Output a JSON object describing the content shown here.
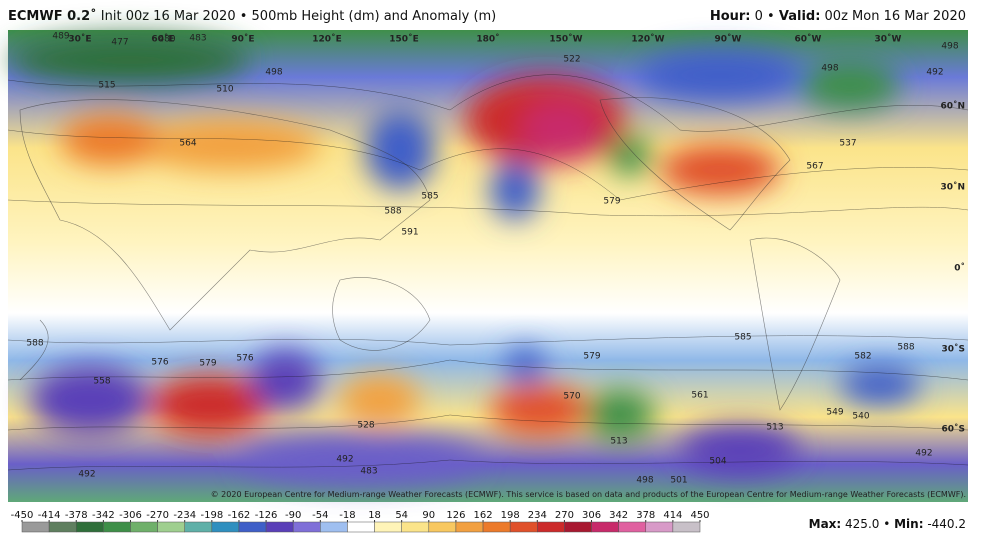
{
  "header": {
    "model": "ECMWF 0.2˚",
    "description": " Init 00z 16 Mar 2020 • 500mb Height (dm) and Anomaly (m)",
    "hour_label": "Hour:",
    "hour_value": " 0 • ",
    "valid_label": "Valid:",
    "valid_value": " 00z Mon 16 Mar 2020"
  },
  "map": {
    "longitudes": [
      "30˚E",
      "60˚E",
      "90˚E",
      "120˚E",
      "150˚E",
      "180˚",
      "150˚W",
      "120˚W",
      "90˚W",
      "60˚W",
      "30˚W"
    ],
    "latitudes": [
      "60˚N",
      "30˚N",
      "0˚",
      "30˚S",
      "60˚S"
    ],
    "contour_labels": [
      "588",
      "576",
      "579",
      "558",
      "591",
      "588",
      "585",
      "579",
      "522",
      "498",
      "510",
      "515",
      "564",
      "537",
      "567",
      "585",
      "582",
      "588",
      "579",
      "570",
      "513",
      "504",
      "492",
      "492",
      "483",
      "492",
      "498",
      "501",
      "528",
      "549",
      "540",
      "513",
      "498",
      "492",
      "489",
      "477",
      "480",
      "483",
      "498",
      "576",
      "561"
    ],
    "copyright": "© 2020 European Centre for Medium-range Weather Forecasts (ECMWF). This service is based on data and products of the European Centre for Medium-range Weather Forecasts (ECMWF)."
  },
  "colorbar": {
    "ticks": [
      -450,
      -414,
      -378,
      -342,
      -306,
      -270,
      -234,
      -198,
      -162,
      -126,
      -90,
      -54,
      -18,
      18,
      54,
      90,
      126,
      162,
      198,
      234,
      270,
      306,
      342,
      378,
      414,
      450
    ],
    "colors": [
      "#9a9a9a",
      "#5f7f5f",
      "#2f6f3a",
      "#3e8f48",
      "#6fb06a",
      "#9fcf8f",
      "#5fb0a8",
      "#2f8fbf",
      "#3f5fc8",
      "#5a3fb8",
      "#7f6fd8",
      "#9fbff0",
      "#ffffff",
      "#fff4b8",
      "#fbe48a",
      "#f8c860",
      "#f2a040",
      "#ec7a2a",
      "#e0502a",
      "#cc2a2a",
      "#a81830",
      "#c82a6a",
      "#e060a0",
      "#d89ac8",
      "#c8c0c8"
    ]
  },
  "stats": {
    "max_label": "Max:",
    "max_value": " 425.0 • ",
    "min_label": "Min:",
    "min_value": " -440.2"
  }
}
